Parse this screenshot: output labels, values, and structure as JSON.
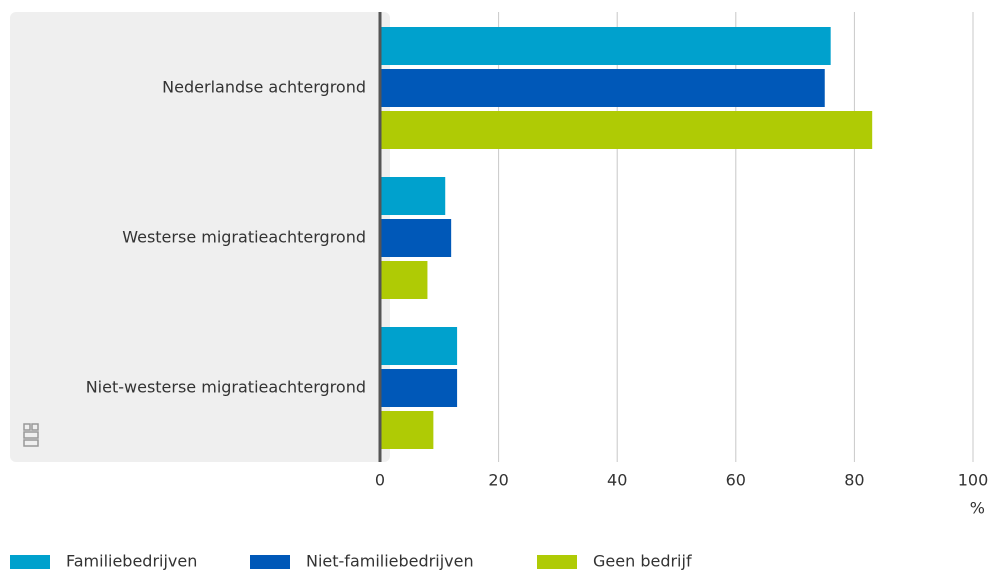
{
  "chart_data": {
    "type": "hbar",
    "categories": [
      "Nederlandse achtergrond",
      "Westerse migratieachtergrond",
      "Niet-westerse migratieachtergrond"
    ],
    "series": [
      {
        "name": "Familiebedrijven",
        "color": "#00a1cd",
        "values": [
          76,
          11,
          13
        ]
      },
      {
        "name": "Niet-familiebedrijven",
        "color": "#0058b8",
        "values": [
          75,
          12,
          13
        ]
      },
      {
        "name": "Geen bedrijf",
        "color": "#afcb05",
        "values": [
          83,
          8,
          9
        ]
      }
    ],
    "xlim": [
      0,
      100
    ],
    "xticks": [
      0,
      20,
      40,
      60,
      80,
      100
    ],
    "xlabel": "%",
    "grid": true
  }
}
